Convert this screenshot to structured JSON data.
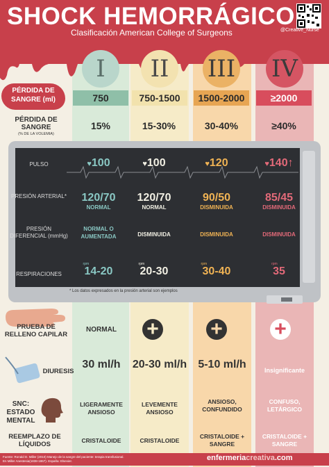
{
  "header": {
    "title": "SHOCK HEMORRÁGICO",
    "subtitle": "Clasificación American College of Surgeons",
    "handle": "@Creative_Nurse"
  },
  "classes": [
    "I",
    "II",
    "III",
    "IV"
  ],
  "blood_loss_ml": {
    "label": "PÉRDIDA DE SANGRE (ml)",
    "values": [
      "750",
      "750-1500",
      "1500-2000",
      "≥2000"
    ]
  },
  "blood_loss_pct": {
    "label": "PÉRDIDA DE SANGRE",
    "sublabel": "(% DE LA VOLEMIA)",
    "values": [
      "15%",
      "15-30%",
      "30-40%",
      "≥40%"
    ]
  },
  "monitor": {
    "pulse": {
      "label": "PULSO",
      "values": [
        "100",
        "100",
        "120",
        "140"
      ],
      "arrow": "↑"
    },
    "bp": {
      "label": "PRESIÓN ARTERIAL*",
      "values": [
        "120/70",
        "120/70",
        "90/50",
        "85/45"
      ],
      "status": [
        "NORMAL",
        "NORMAL",
        "DISMINUIDA",
        "DISMINUIDA"
      ]
    },
    "pulse_pressure": {
      "label": "PRESIÓN DIFERENCIAL (mmHg)",
      "values": [
        "NORMAL O AUMENTADA",
        "DISMINUIDA",
        "DISMINUIDA",
        "DISMINUIDA"
      ]
    },
    "respiration": {
      "label": "RESPIRACIONES",
      "unit": "rpm",
      "values": [
        "14-20",
        "20-30",
        "30-40",
        "35"
      ]
    },
    "note": "* Los datos expresados en la presión arterial son ejemplos"
  },
  "capillary_refill": {
    "label": "PRUEBA DE RELLENO CAPILAR",
    "values": [
      "NORMAL",
      "",
      "",
      ""
    ]
  },
  "diuresis": {
    "label": "DIURESIS",
    "values": [
      "30 ml/h",
      "20-30 ml/h",
      "5-10 ml/h",
      "Insignificante"
    ]
  },
  "cns": {
    "label": "SNC: ESTADO MENTAL",
    "values": [
      "LIGERAMENTE ANSIOSO",
      "LEVEMENTE ANSIOSO",
      "ANSIOSO, CONFUNDIDO",
      "CONFUSO, LETÁRGICO"
    ]
  },
  "fluids": {
    "label": "REEMPLAZO DE LÍQUIDOS",
    "values": [
      "CRISTALOIDE",
      "CRISTALOIDE",
      "CRISTALOIDE + SANGRE",
      "CRISTALOIDE + SANGRE"
    ]
  },
  "footer": {
    "source_line1": "Fuente: Ronald D. Miller (2010) Manejo de la sangre del paciente: terapia transfusional.",
    "source_line2": "En Miller Anestesia(1838-1867). España: Elsevier.",
    "brand_a": "enfermeria",
    "brand_b": "creativa",
    "brand_c": ".com"
  },
  "colors": {
    "red": "#c8404b",
    "class1": "#8fbfa8",
    "class2": "#f2e2ad",
    "class3": "#e7a553",
    "class4": "#d84d5d"
  }
}
